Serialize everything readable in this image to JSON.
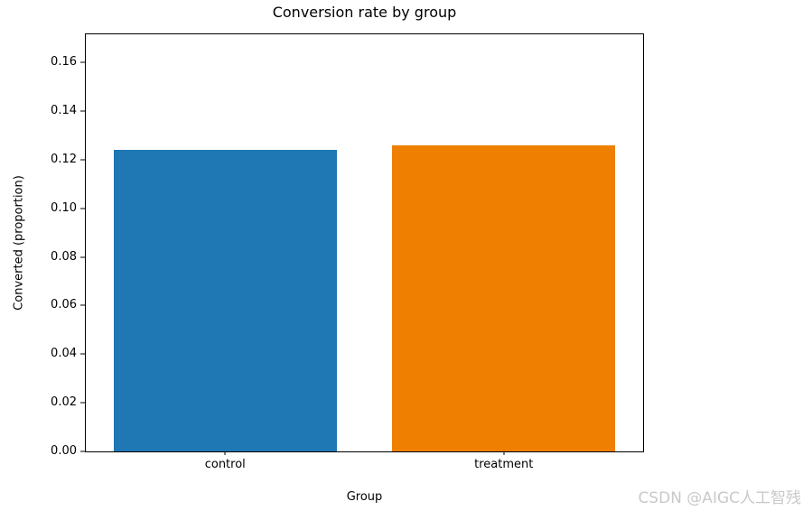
{
  "watermark": {
    "text": "CSDN @AIGC人工智残",
    "color": "#c9c9c9"
  },
  "chart_data": {
    "type": "bar",
    "title": "Conversion rate by group",
    "xlabel": "Group",
    "ylabel": "Converted (proportion)",
    "categories": [
      "control",
      "treatment"
    ],
    "values": [
      0.124,
      0.126
    ],
    "bar_colors": [
      "#1f77b4",
      "#ee7f00"
    ],
    "ylim": [
      0,
      0.1716
    ],
    "yticks": [
      "0.00",
      "0.02",
      "0.04",
      "0.06",
      "0.08",
      "0.10",
      "0.12",
      "0.14",
      "0.16"
    ],
    "ytick_values": [
      0,
      0.02,
      0.04,
      0.06,
      0.08,
      0.1,
      0.12,
      0.14,
      0.16
    ],
    "grid": false,
    "legend": "none",
    "background": "#ffffff",
    "axes_color": "#000000"
  }
}
